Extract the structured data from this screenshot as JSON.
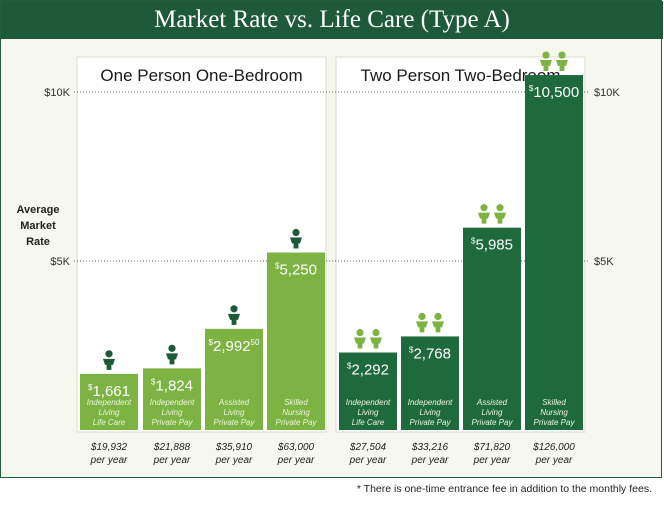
{
  "title": "Market Rate vs. Life Care (Type A)",
  "footnote": "* There is one-time entrance fee in addition to the monthly fees.",
  "colors": {
    "header": "#1e5a38",
    "light_green": "#7cb342",
    "dark_green": "#1e6a3c",
    "panel_bg": "#ffffff",
    "frame_bg": "#f6f7ee"
  },
  "chart_data": {
    "type": "bar",
    "ylabel": "Average Market Rate",
    "ylim": [
      0,
      11300
    ],
    "yticks": [
      {
        "value": 5000,
        "label": "$5K"
      },
      {
        "value": 10000,
        "label": "$10K"
      }
    ],
    "panels": [
      {
        "title": "One Person One-Bedroom",
        "icon": "single-person-icon",
        "color": "light",
        "bars": [
          {
            "value": 1661,
            "dollars": "1,661",
            "cents": "",
            "desc": [
              "Independent",
              "Living",
              "Life Care"
            ],
            "annual": "$19,932",
            "per": "per year"
          },
          {
            "value": 1824,
            "dollars": "1,824",
            "cents": "",
            "desc": [
              "Independent",
              "Living",
              "Private Pay"
            ],
            "annual": "$21,888",
            "per": "per year"
          },
          {
            "value": 2992.5,
            "dollars": "2,992",
            "cents": "50",
            "desc": [
              "Assisted",
              "Living",
              "Private Pay"
            ],
            "annual": "$35,910",
            "per": "per year"
          },
          {
            "value": 5250,
            "dollars": "5,250",
            "cents": "",
            "desc": [
              "Skilled",
              "Nursing",
              "Private Pay"
            ],
            "annual": "$63,000",
            "per": "per year"
          }
        ]
      },
      {
        "title": "Two Person Two-Bedroom",
        "icon": "two-people-icon",
        "color": "dark",
        "bars": [
          {
            "value": 2292,
            "dollars": "2,292",
            "cents": "",
            "desc": [
              "Independent",
              "Living",
              "Life Care"
            ],
            "annual": "$27,504",
            "per": "per year"
          },
          {
            "value": 2768,
            "dollars": "2,768",
            "cents": "",
            "desc": [
              "Independent",
              "Living",
              "Private Pay"
            ],
            "annual": "$33,216",
            "per": "per year"
          },
          {
            "value": 5985,
            "dollars": "5,985",
            "cents": "",
            "desc": [
              "Assisted",
              "Living",
              "Private Pay"
            ],
            "annual": "$71,820",
            "per": "per year"
          },
          {
            "value": 10500,
            "dollars": "10,500",
            "cents": "",
            "desc": [
              "Skilled",
              "Nursing",
              "Private Pay"
            ],
            "annual": "$126,000",
            "per": "per year"
          }
        ]
      }
    ]
  }
}
